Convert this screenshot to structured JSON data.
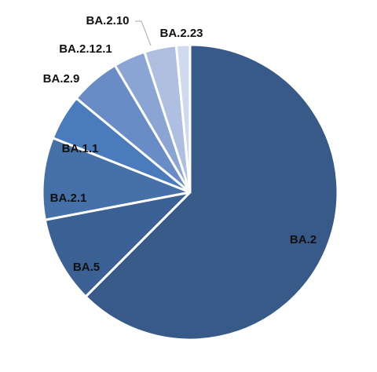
{
  "chart_data": {
    "type": "pie",
    "title": "",
    "slices": [
      {
        "label": "BA.2",
        "value": 62.5,
        "color": "#385a88"
      },
      {
        "label": "BA.5",
        "value": 9.5,
        "color": "#3b6194"
      },
      {
        "label": "BA.2.1",
        "value": 9.0,
        "color": "#4570a8"
      },
      {
        "label": "BA.1.1",
        "value": 5.0,
        "color": "#4a7bbd"
      },
      {
        "label": "BA.2.9",
        "value": 5.5,
        "color": "#6a8cc6"
      },
      {
        "label": "BA.2.12.1",
        "value": 3.5,
        "color": "#8aa5d3"
      },
      {
        "label": "BA.2.10",
        "value": 3.5,
        "color": "#afbfe1"
      },
      {
        "label": "BA.2.23",
        "value": 1.5,
        "color": "#d0daee"
      }
    ],
    "legend": "none",
    "data_labels": "category names"
  }
}
